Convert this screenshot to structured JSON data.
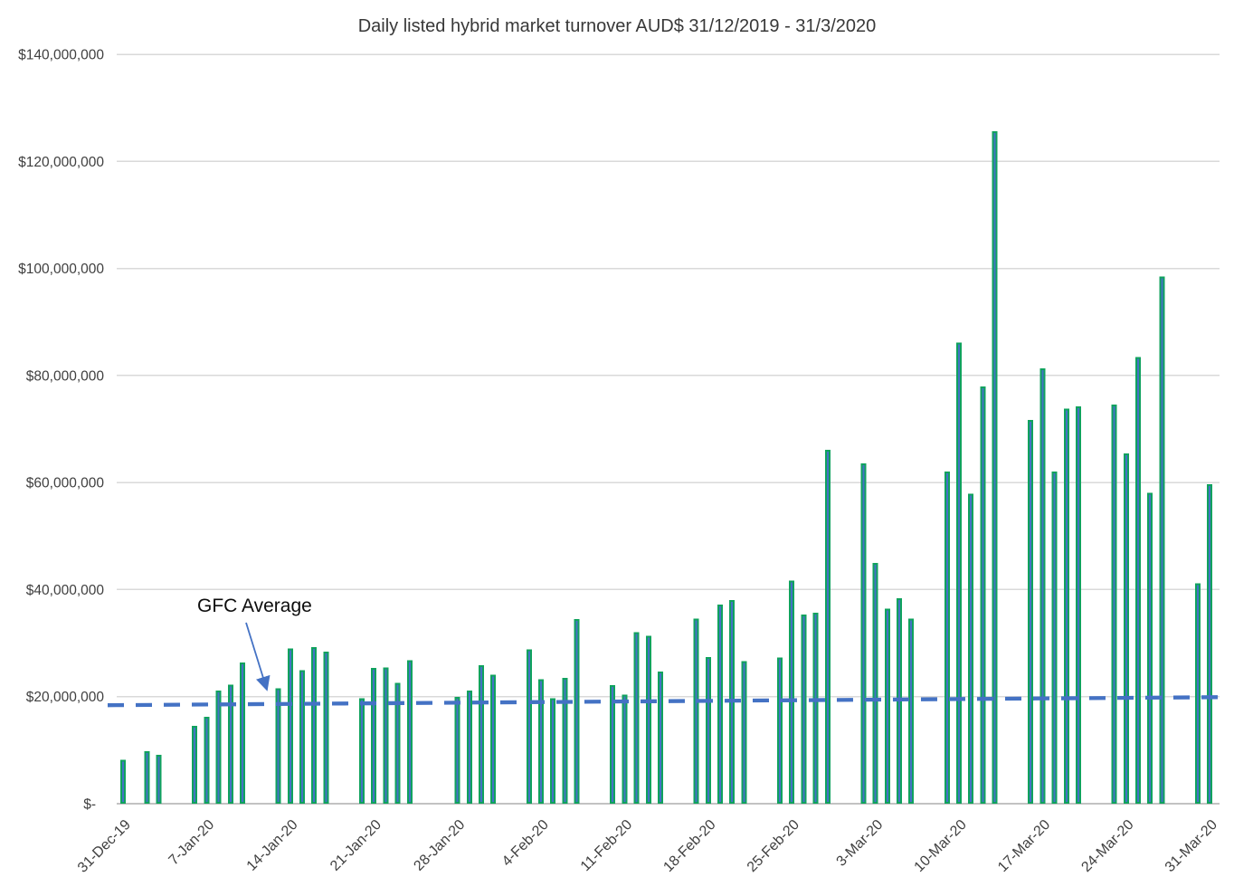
{
  "title": "Daily listed hybrid market turnover AUD$ 31/12/2019 - 31/3/2020",
  "annotation": {
    "label": "GFC Average"
  },
  "colors": {
    "bar_fill": "#4472c4",
    "bar_border": "#10a25e",
    "average_line": "#4472c4",
    "gridline": "#d9d9d9",
    "axis_line": "#c2c2c2",
    "axis_text": "#404040",
    "title_text": "#383838",
    "annotation_text": "#0d0d0d"
  },
  "chart_data": {
    "type": "bar",
    "title": "Daily listed hybrid market turnover AUD$ 31/12/2019 - 31/3/2020",
    "xlabel": "",
    "ylabel": "",
    "grid": true,
    "legend": false,
    "y_axis": {
      "min": 0,
      "max": 140000000,
      "step": 20000000,
      "tick_labels": [
        "$-",
        "$20,000,000",
        "$40,000,000",
        "$60,000,000",
        "$80,000,000",
        "$100,000,000",
        "$120,000,000",
        "$140,000,000"
      ]
    },
    "x_axis": {
      "tick_labels": [
        "31-Dec-19",
        "7-Jan-20",
        "14-Jan-20",
        "21-Jan-20",
        "28-Jan-20",
        "4-Feb-20",
        "11-Feb-20",
        "18-Feb-20",
        "25-Feb-20",
        "3-Mar-20",
        "10-Mar-20",
        "17-Mar-20",
        "24-Mar-20",
        "31-Mar-20"
      ],
      "tick_interval_days": 7
    },
    "series": [
      {
        "name": "Daily listed hybrid market turnover",
        "dates": [
          "31-Dec-19",
          "2-Jan-20",
          "3-Jan-20",
          "6-Jan-20",
          "7-Jan-20",
          "8-Jan-20",
          "9-Jan-20",
          "10-Jan-20",
          "13-Jan-20",
          "14-Jan-20",
          "15-Jan-20",
          "16-Jan-20",
          "17-Jan-20",
          "20-Jan-20",
          "21-Jan-20",
          "22-Jan-20",
          "23-Jan-20",
          "24-Jan-20",
          "28-Jan-20",
          "29-Jan-20",
          "30-Jan-20",
          "31-Jan-20",
          "3-Feb-20",
          "4-Feb-20",
          "5-Feb-20",
          "6-Feb-20",
          "7-Feb-20",
          "10-Feb-20",
          "11-Feb-20",
          "12-Feb-20",
          "13-Feb-20",
          "14-Feb-20",
          "17-Feb-20",
          "18-Feb-20",
          "19-Feb-20",
          "20-Feb-20",
          "21-Feb-20",
          "24-Feb-20",
          "25-Feb-20",
          "26-Feb-20",
          "27-Feb-20",
          "28-Feb-20",
          "2-Mar-20",
          "3-Mar-20",
          "4-Mar-20",
          "5-Mar-20",
          "6-Mar-20",
          "9-Mar-20",
          "10-Mar-20",
          "11-Mar-20",
          "12-Mar-20",
          "13-Mar-20",
          "16-Mar-20",
          "17-Mar-20",
          "18-Mar-20",
          "19-Mar-20",
          "20-Mar-20",
          "23-Mar-20",
          "24-Mar-20",
          "25-Mar-20",
          "26-Mar-20",
          "27-Mar-20",
          "30-Mar-20",
          "31-Mar-20"
        ],
        "values": [
          8000000,
          9600000,
          9000000,
          14400000,
          16100000,
          21000000,
          22100000,
          26200000,
          21400000,
          28800000,
          24800000,
          29100000,
          28200000,
          19500000,
          25200000,
          25300000,
          22400000,
          26600000,
          19800000,
          21000000,
          25700000,
          23900000,
          28700000,
          23100000,
          19500000,
          23300000,
          34300000,
          22000000,
          20200000,
          31900000,
          31200000,
          24500000,
          34400000,
          27200000,
          37000000,
          37900000,
          26500000,
          27100000,
          41500000,
          35200000,
          35500000,
          65900000,
          63400000,
          44800000,
          36300000,
          38200000,
          34400000,
          61900000,
          86000000,
          57700000,
          77800000,
          125500000,
          71500000,
          81200000,
          61900000,
          73600000,
          74100000,
          74400000,
          65300000,
          83300000,
          57900000,
          98300000,
          41000000,
          59500000
        ]
      }
    ],
    "average_line": {
      "label": "GFC Average",
      "style": "dashed",
      "start_value": 18400000,
      "end_value": 19900000
    }
  }
}
